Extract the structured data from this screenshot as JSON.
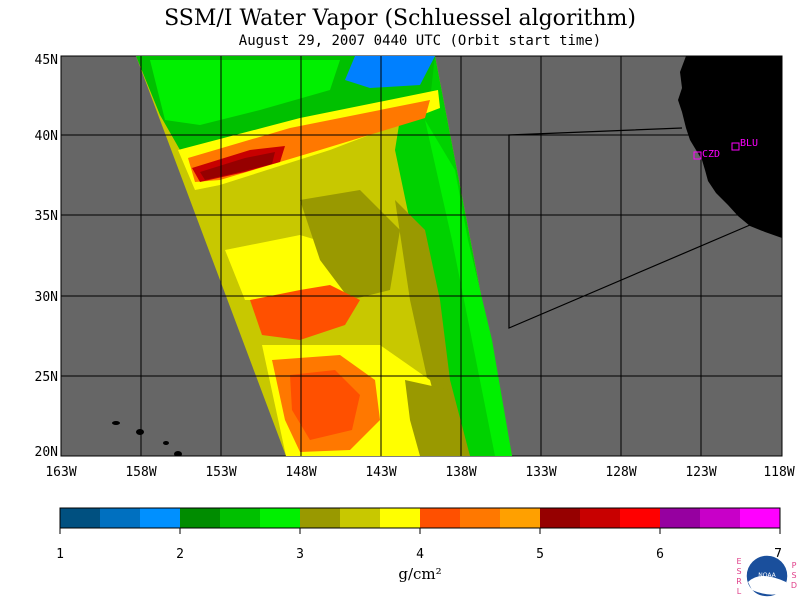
{
  "title": "SSM/I Water Vapor (Schluessel algorithm)",
  "subtitle": "August 29, 2007  0440 UTC  (Orbit start time)",
  "map": {
    "lat_labels": [
      "45N",
      "40N",
      "35N",
      "30N",
      "25N",
      "20N"
    ],
    "lon_labels": [
      "163W",
      "158W",
      "153W",
      "148W",
      "143W",
      "138W",
      "133W",
      "128W",
      "123W",
      "118W"
    ],
    "stations": [
      {
        "name": "CZD",
        "lon": -123.0,
        "lat": 38.6
      },
      {
        "name": "BLU",
        "lon": -120.9,
        "lat": 39.3
      }
    ],
    "colors": {
      "land": "#000000",
      "no_data": "#666666",
      "grid": "#000000"
    }
  },
  "colorbar": {
    "ticks": [
      "1",
      "2",
      "3",
      "4",
      "5",
      "6",
      "7"
    ],
    "unit_label": "g/cm²",
    "colors": [
      "#005080",
      "#0070c0",
      "#0090ff",
      "#008c00",
      "#00c000",
      "#00f000",
      "#999900",
      "#c8c800",
      "#ffff00",
      "#ff5000",
      "#ff7800",
      "#ffa000",
      "#960000",
      "#c80000",
      "#ff0000",
      "#9600a0",
      "#c800c8",
      "#ff00ff"
    ]
  },
  "logo": {
    "left_letters": [
      "E",
      "S",
      "R",
      "L"
    ],
    "right_letters": [
      "P",
      "S",
      "D"
    ],
    "badge_text": "NOAA"
  }
}
